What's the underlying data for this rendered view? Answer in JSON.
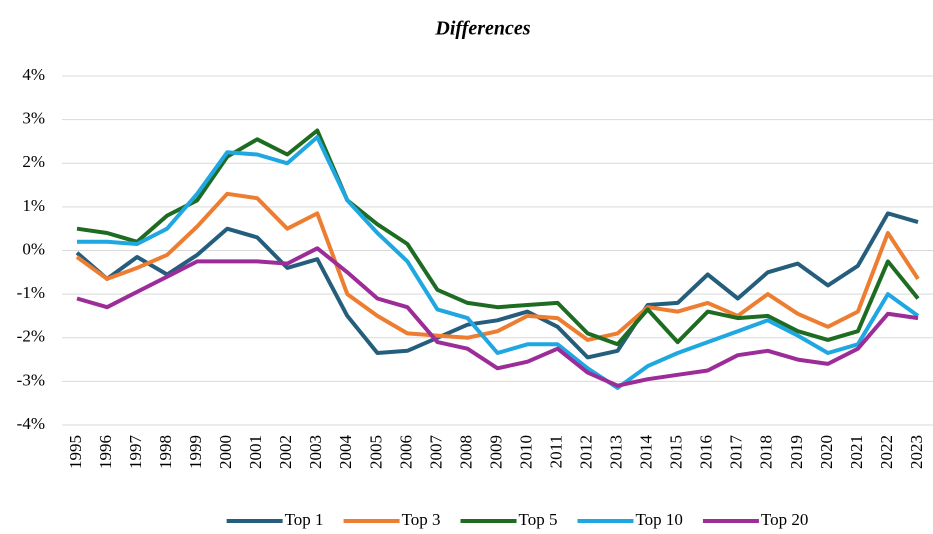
{
  "chart_data": {
    "type": "line",
    "title": "Differences",
    "categories": [
      "1995",
      "1996",
      "1997",
      "1998",
      "1999",
      "2000",
      "2001",
      "2002",
      "2003",
      "2004",
      "2005",
      "2006",
      "2007",
      "2008",
      "2009",
      "2010",
      "2011",
      "2012",
      "2013",
      "2014",
      "2015",
      "2016",
      "2017",
      "2018",
      "2019",
      "2020",
      "2021",
      "2022",
      "2023"
    ],
    "series": [
      {
        "name": "Top 1",
        "color": "#245e7c",
        "values": [
          -0.05,
          -0.65,
          -0.15,
          -0.55,
          -0.1,
          0.5,
          0.3,
          -0.4,
          -0.2,
          -1.5,
          -2.35,
          -2.3,
          -2.0,
          -1.7,
          -1.6,
          -1.4,
          -1.75,
          -2.45,
          -2.3,
          -1.25,
          -1.2,
          -0.55,
          -1.1,
          -0.5,
          -0.3,
          -0.8,
          -0.35,
          0.85,
          0.65
        ]
      },
      {
        "name": "Top 3",
        "color": "#ed7d31",
        "values": [
          -0.15,
          -0.65,
          -0.4,
          -0.1,
          0.55,
          1.3,
          1.2,
          0.5,
          0.85,
          -1.0,
          -1.5,
          -1.9,
          -1.95,
          -2.0,
          -1.85,
          -1.5,
          -1.55,
          -2.05,
          -1.9,
          -1.3,
          -1.4,
          -1.2,
          -1.5,
          -1.0,
          -1.45,
          -1.75,
          -1.4,
          0.4,
          -0.65
        ]
      },
      {
        "name": "Top 5",
        "color": "#1e6b22",
        "values": [
          0.5,
          0.4,
          0.2,
          0.8,
          1.15,
          2.15,
          2.55,
          2.2,
          2.75,
          1.15,
          0.6,
          0.15,
          -0.9,
          -1.2,
          -1.3,
          -1.25,
          -1.2,
          -1.9,
          -2.15,
          -1.35,
          -2.1,
          -1.4,
          -1.55,
          -1.5,
          -1.85,
          -2.05,
          -1.85,
          -0.25,
          -1.1
        ]
      },
      {
        "name": "Top 10",
        "color": "#1fa7e1",
        "values": [
          0.2,
          0.2,
          0.15,
          0.5,
          1.3,
          2.25,
          2.2,
          2.0,
          2.6,
          1.15,
          0.4,
          -0.25,
          -1.35,
          -1.55,
          -2.35,
          -2.15,
          -2.15,
          -2.7,
          -3.15,
          -2.65,
          -2.35,
          -2.1,
          -1.85,
          -1.6,
          -1.95,
          -2.35,
          -2.15,
          -1.0,
          -1.5
        ]
      },
      {
        "name": "Top 20",
        "color": "#9c2c98",
        "values": [
          -1.1,
          -1.3,
          -0.95,
          -0.6,
          -0.25,
          -0.25,
          -0.25,
          -0.3,
          0.05,
          -0.5,
          -1.1,
          -1.3,
          -2.1,
          -2.25,
          -2.7,
          -2.55,
          -2.25,
          -2.8,
          -3.1,
          -2.95,
          -2.85,
          -2.75,
          -2.4,
          -2.3,
          -2.5,
          -2.6,
          -2.25,
          -1.45,
          -1.55
        ]
      }
    ],
    "ylim": [
      -4,
      4
    ],
    "yticks": [
      {
        "value": -4,
        "label": "-4%"
      },
      {
        "value": -3,
        "label": "-3%"
      },
      {
        "value": -2,
        "label": "-2%"
      },
      {
        "value": -1,
        "label": "-1%"
      },
      {
        "value": 0,
        "label": "0%"
      },
      {
        "value": 1,
        "label": "1%"
      },
      {
        "value": 2,
        "label": "2%"
      },
      {
        "value": 3,
        "label": "3%"
      },
      {
        "value": 4,
        "label": "4%"
      }
    ],
    "grid": true,
    "legend": "bottom"
  }
}
